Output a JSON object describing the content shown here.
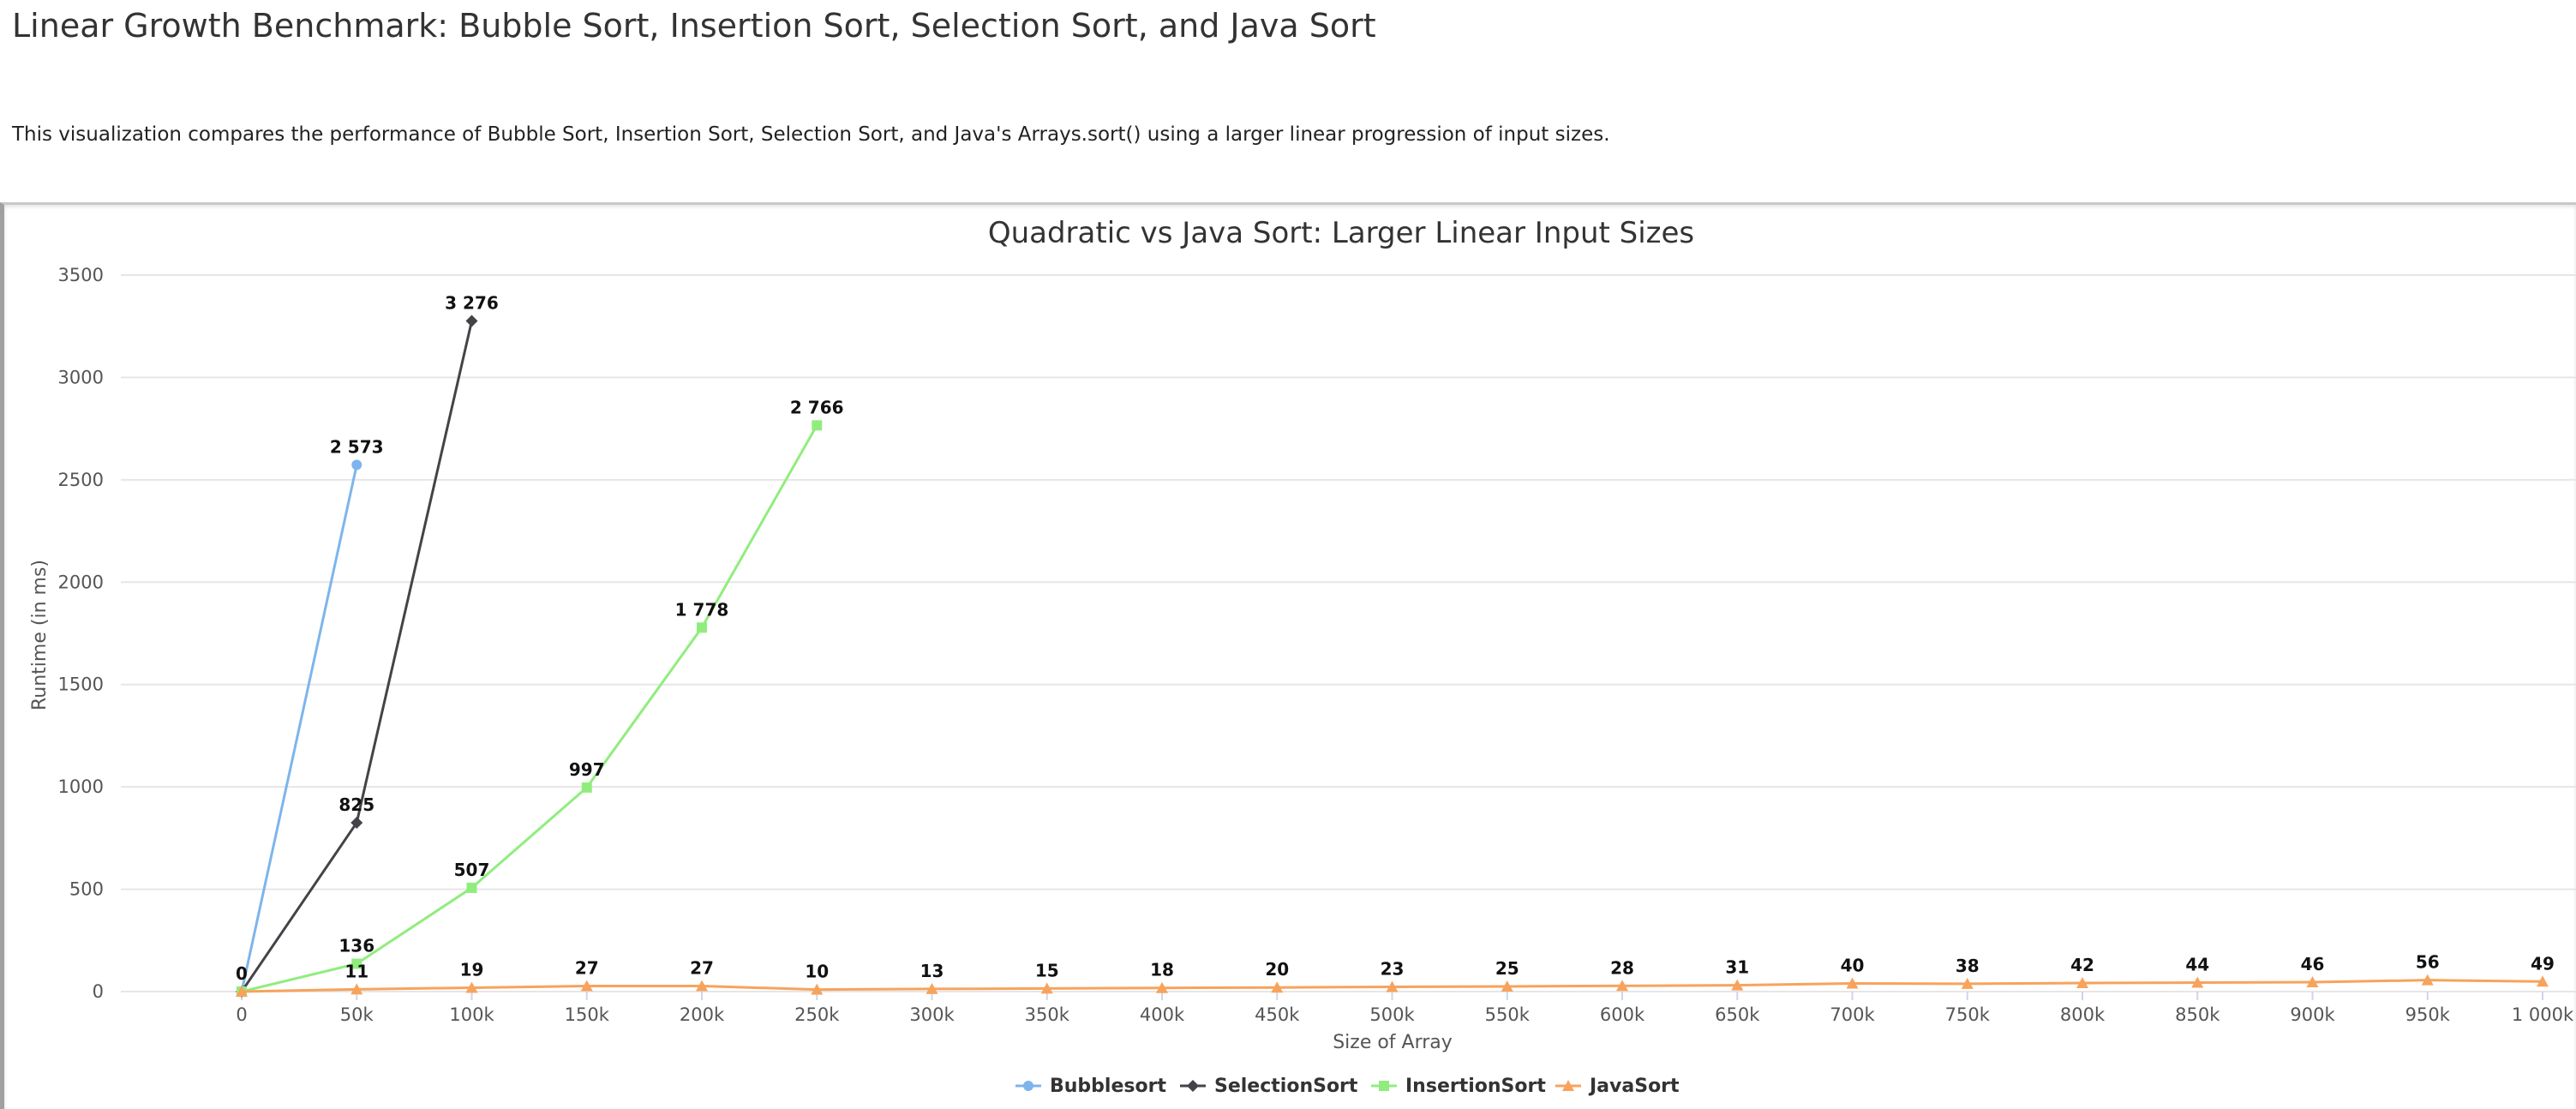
{
  "page": {
    "title": "Linear Growth Benchmark: Bubble Sort, Insertion Sort, Selection Sort, and Java Sort",
    "description": "This visualization compares the performance of Bubble Sort, Insertion Sort, Selection Sort, and Java's Arrays.sort() using a larger linear progression of input sizes."
  },
  "chart_data": {
    "type": "line",
    "title": "Quadratic vs Java Sort: Larger Linear Input Sizes",
    "xlabel": "Size of Array",
    "ylabel": "Runtime (in ms)",
    "x_ticks": [
      "0",
      "50k",
      "100k",
      "150k",
      "200k",
      "250k",
      "300k",
      "350k",
      "400k",
      "450k",
      "500k",
      "550k",
      "600k",
      "650k",
      "700k",
      "750k",
      "800k",
      "850k",
      "900k",
      "950k",
      "1 000k"
    ],
    "xlim": [
      0,
      1000000
    ],
    "ylim": [
      0,
      3500
    ],
    "y_ticks": [
      0,
      500,
      1000,
      1500,
      2000,
      2500,
      3000,
      3500
    ],
    "grid": true,
    "legend_position": "bottom-center",
    "series": [
      {
        "name": "Bubblesort",
        "color": "#7cb5ec",
        "marker": "circle",
        "points": [
          {
            "x": 0,
            "y": 0,
            "label": ""
          },
          {
            "x": 50000,
            "y": 2573,
            "label": "2 573"
          }
        ]
      },
      {
        "name": "SelectionSort",
        "color": "#434348",
        "marker": "diamond",
        "points": [
          {
            "x": 0,
            "y": 0,
            "label": ""
          },
          {
            "x": 50000,
            "y": 825,
            "label": "825"
          },
          {
            "x": 100000,
            "y": 3276,
            "label": "3 276"
          }
        ]
      },
      {
        "name": "InsertionSort",
        "color": "#90ed7d",
        "marker": "square",
        "points": [
          {
            "x": 0,
            "y": 0,
            "label": "0"
          },
          {
            "x": 50000,
            "y": 136,
            "label": "136"
          },
          {
            "x": 100000,
            "y": 507,
            "label": "507"
          },
          {
            "x": 150000,
            "y": 997,
            "label": "997"
          },
          {
            "x": 200000,
            "y": 1778,
            "label": "1 778"
          },
          {
            "x": 250000,
            "y": 2766,
            "label": "2 766"
          }
        ]
      },
      {
        "name": "JavaSort",
        "color": "#f7a35c",
        "marker": "triangle",
        "points": [
          {
            "x": 0,
            "y": 0,
            "label": ""
          },
          {
            "x": 50000,
            "y": 11,
            "label": "11"
          },
          {
            "x": 100000,
            "y": 19,
            "label": "19"
          },
          {
            "x": 150000,
            "y": 27,
            "label": "27"
          },
          {
            "x": 200000,
            "y": 27,
            "label": "27"
          },
          {
            "x": 250000,
            "y": 10,
            "label": "10"
          },
          {
            "x": 300000,
            "y": 13,
            "label": "13"
          },
          {
            "x": 350000,
            "y": 15,
            "label": "15"
          },
          {
            "x": 400000,
            "y": 18,
            "label": "18"
          },
          {
            "x": 450000,
            "y": 20,
            "label": "20"
          },
          {
            "x": 500000,
            "y": 23,
            "label": "23"
          },
          {
            "x": 550000,
            "y": 25,
            "label": "25"
          },
          {
            "x": 600000,
            "y": 28,
            "label": "28"
          },
          {
            "x": 650000,
            "y": 31,
            "label": "31"
          },
          {
            "x": 700000,
            "y": 40,
            "label": "40"
          },
          {
            "x": 750000,
            "y": 38,
            "label": "38"
          },
          {
            "x": 800000,
            "y": 42,
            "label": "42"
          },
          {
            "x": 850000,
            "y": 44,
            "label": "44"
          },
          {
            "x": 900000,
            "y": 46,
            "label": "46"
          },
          {
            "x": 950000,
            "y": 56,
            "label": "56"
          },
          {
            "x": 1000000,
            "y": 49,
            "label": "49"
          }
        ]
      }
    ]
  }
}
